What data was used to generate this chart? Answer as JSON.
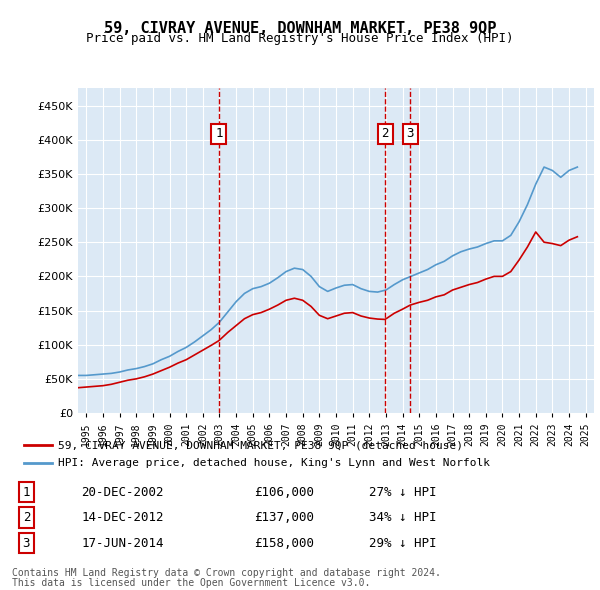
{
  "title": "59, CIVRAY AVENUE, DOWNHAM MARKET, PE38 9QP",
  "subtitle": "Price paid vs. HM Land Registry's House Price Index (HPI)",
  "hpi_label": "HPI: Average price, detached house, King's Lynn and West Norfolk",
  "property_label": "59, CIVRAY AVENUE, DOWNHAM MARKET, PE38 9QP (detached house)",
  "footer1": "Contains HM Land Registry data © Crown copyright and database right 2024.",
  "footer2": "This data is licensed under the Open Government Licence v3.0.",
  "sales": [
    {
      "num": 1,
      "date": "20-DEC-2002",
      "price": 106000,
      "pct": "27%",
      "x_year": 2002.97
    },
    {
      "num": 2,
      "date": "14-DEC-2012",
      "price": 137000,
      "pct": "34%",
      "x_year": 2012.95
    },
    {
      "num": 3,
      "date": "17-JUN-2014",
      "price": 158000,
      "pct": "29%",
      "x_year": 2014.46
    }
  ],
  "ylim": [
    0,
    475000
  ],
  "yticks": [
    0,
    50000,
    100000,
    150000,
    200000,
    250000,
    300000,
    350000,
    400000,
    450000
  ],
  "xlim_start": 1994.5,
  "xlim_end": 2025.5,
  "background_color": "#dce9f5",
  "plot_bg": "#dce9f5",
  "red_color": "#cc0000",
  "blue_color": "#5599cc",
  "grid_color": "#ffffff",
  "hpi_data": {
    "years": [
      1994.5,
      1995.0,
      1995.5,
      1996.0,
      1996.5,
      1997.0,
      1997.5,
      1998.0,
      1998.5,
      1999.0,
      1999.5,
      2000.0,
      2000.5,
      2001.0,
      2001.5,
      2002.0,
      2002.5,
      2003.0,
      2003.5,
      2004.0,
      2004.5,
      2005.0,
      2005.5,
      2006.0,
      2006.5,
      2007.0,
      2007.5,
      2008.0,
      2008.5,
      2009.0,
      2009.5,
      2010.0,
      2010.5,
      2011.0,
      2011.5,
      2012.0,
      2012.5,
      2013.0,
      2013.5,
      2014.0,
      2014.5,
      2015.0,
      2015.5,
      2016.0,
      2016.5,
      2017.0,
      2017.5,
      2018.0,
      2018.5,
      2019.0,
      2019.5,
      2020.0,
      2020.5,
      2021.0,
      2021.5,
      2022.0,
      2022.5,
      2023.0,
      2023.5,
      2024.0,
      2024.5
    ],
    "values": [
      55000,
      55000,
      56000,
      57000,
      58000,
      60000,
      63000,
      65000,
      68000,
      72000,
      78000,
      83000,
      90000,
      96000,
      104000,
      113000,
      122000,
      133000,
      148000,
      163000,
      175000,
      182000,
      185000,
      190000,
      198000,
      207000,
      212000,
      210000,
      200000,
      185000,
      178000,
      183000,
      187000,
      188000,
      182000,
      178000,
      177000,
      180000,
      188000,
      195000,
      200000,
      205000,
      210000,
      217000,
      222000,
      230000,
      236000,
      240000,
      243000,
      248000,
      252000,
      252000,
      260000,
      280000,
      305000,
      335000,
      360000,
      355000,
      345000,
      355000,
      360000
    ]
  },
  "property_data": {
    "years": [
      1994.5,
      1995.0,
      1995.5,
      1996.0,
      1996.5,
      1997.0,
      1997.5,
      1998.0,
      1998.5,
      1999.0,
      1999.5,
      2000.0,
      2000.5,
      2001.0,
      2001.5,
      2002.0,
      2002.5,
      2002.97,
      2003.5,
      2004.0,
      2004.5,
      2005.0,
      2005.5,
      2006.0,
      2006.5,
      2007.0,
      2007.5,
      2008.0,
      2008.5,
      2009.0,
      2009.5,
      2010.0,
      2010.5,
      2011.0,
      2011.5,
      2012.0,
      2012.5,
      2012.95,
      2013.5,
      2014.0,
      2014.46,
      2015.0,
      2015.5,
      2016.0,
      2016.5,
      2017.0,
      2017.5,
      2018.0,
      2018.5,
      2019.0,
      2019.5,
      2020.0,
      2020.5,
      2021.0,
      2021.5,
      2022.0,
      2022.5,
      2023.0,
      2023.5,
      2024.0,
      2024.5
    ],
    "values": [
      37000,
      38000,
      39000,
      40000,
      42000,
      45000,
      48000,
      50000,
      53000,
      57000,
      62000,
      67000,
      73000,
      78000,
      85000,
      92000,
      99000,
      106000,
      118000,
      128000,
      138000,
      144000,
      147000,
      152000,
      158000,
      165000,
      168000,
      165000,
      156000,
      143000,
      138000,
      142000,
      146000,
      147000,
      142000,
      139000,
      137500,
      137000,
      146000,
      152000,
      158000,
      162000,
      165000,
      170000,
      173000,
      180000,
      184000,
      188000,
      191000,
      196000,
      200000,
      200000,
      207000,
      224000,
      243000,
      265000,
      250000,
      248000,
      245000,
      253000,
      258000
    ]
  }
}
